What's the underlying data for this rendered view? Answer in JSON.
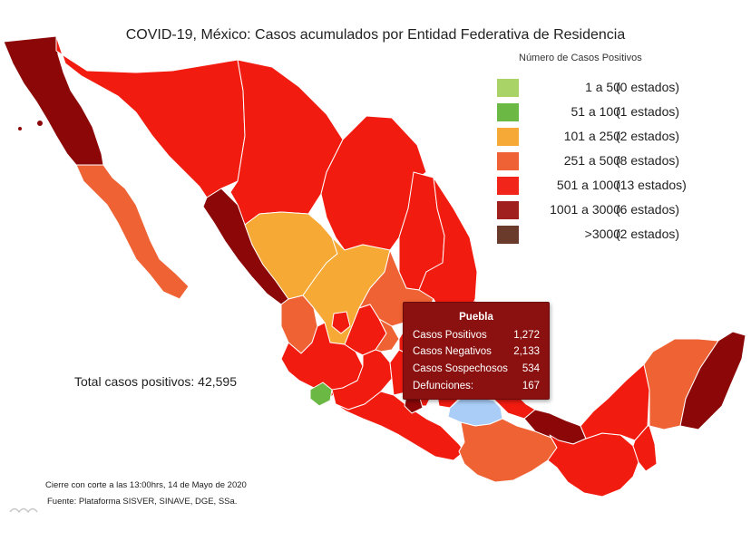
{
  "title": "COVID-19, México: Casos acumulados por Entidad Federativa de Residencia",
  "legend": {
    "title": "Número de Casos Positivos",
    "items": [
      {
        "range": "1 a 50",
        "count": "(0 estados)",
        "color": "#a9d367"
      },
      {
        "range": "51 a 100",
        "count": "(1 estados)",
        "color": "#6cb845"
      },
      {
        "range": "101 a 250",
        "count": "(2 estados)",
        "color": "#f6a936"
      },
      {
        "range": "251 a 500",
        "count": "(8 estados)",
        "color": "#ee6236"
      },
      {
        "range": "501 a 1000",
        "count": "(13 estados)",
        "color": "#f2251a"
      },
      {
        "range": "1001 a 3000",
        "count": "(6 estados)",
        "color": "#a01f1f"
      },
      {
        "range": ">3000",
        "count": "(2 estados)",
        "color": "#6a3a2a"
      }
    ]
  },
  "map_colors": {
    "red": "#f21b10",
    "dark_red": "#8c0707",
    "orange": "#ee6234",
    "amber": "#f6a935",
    "green": "#6cb845",
    "highlight": "#a9cdf7"
  },
  "total_label": "Total casos positivos: 42,595",
  "footnote": "Cierre con corte a las 13:00hrs, 14 de Mayo de 2020",
  "source": "Fuente: Plataforma SISVER, SINAVE, DGE, SSa.",
  "tooltip": {
    "title": "Puebla",
    "rows": [
      {
        "label": "Casos Positivos",
        "value": "1,272"
      },
      {
        "label": "Casos Negativos",
        "value": "2,133"
      },
      {
        "label": "Casos Sospechosos",
        "value": "534"
      },
      {
        "label": "Defunciones:",
        "value": "167"
      }
    ]
  }
}
